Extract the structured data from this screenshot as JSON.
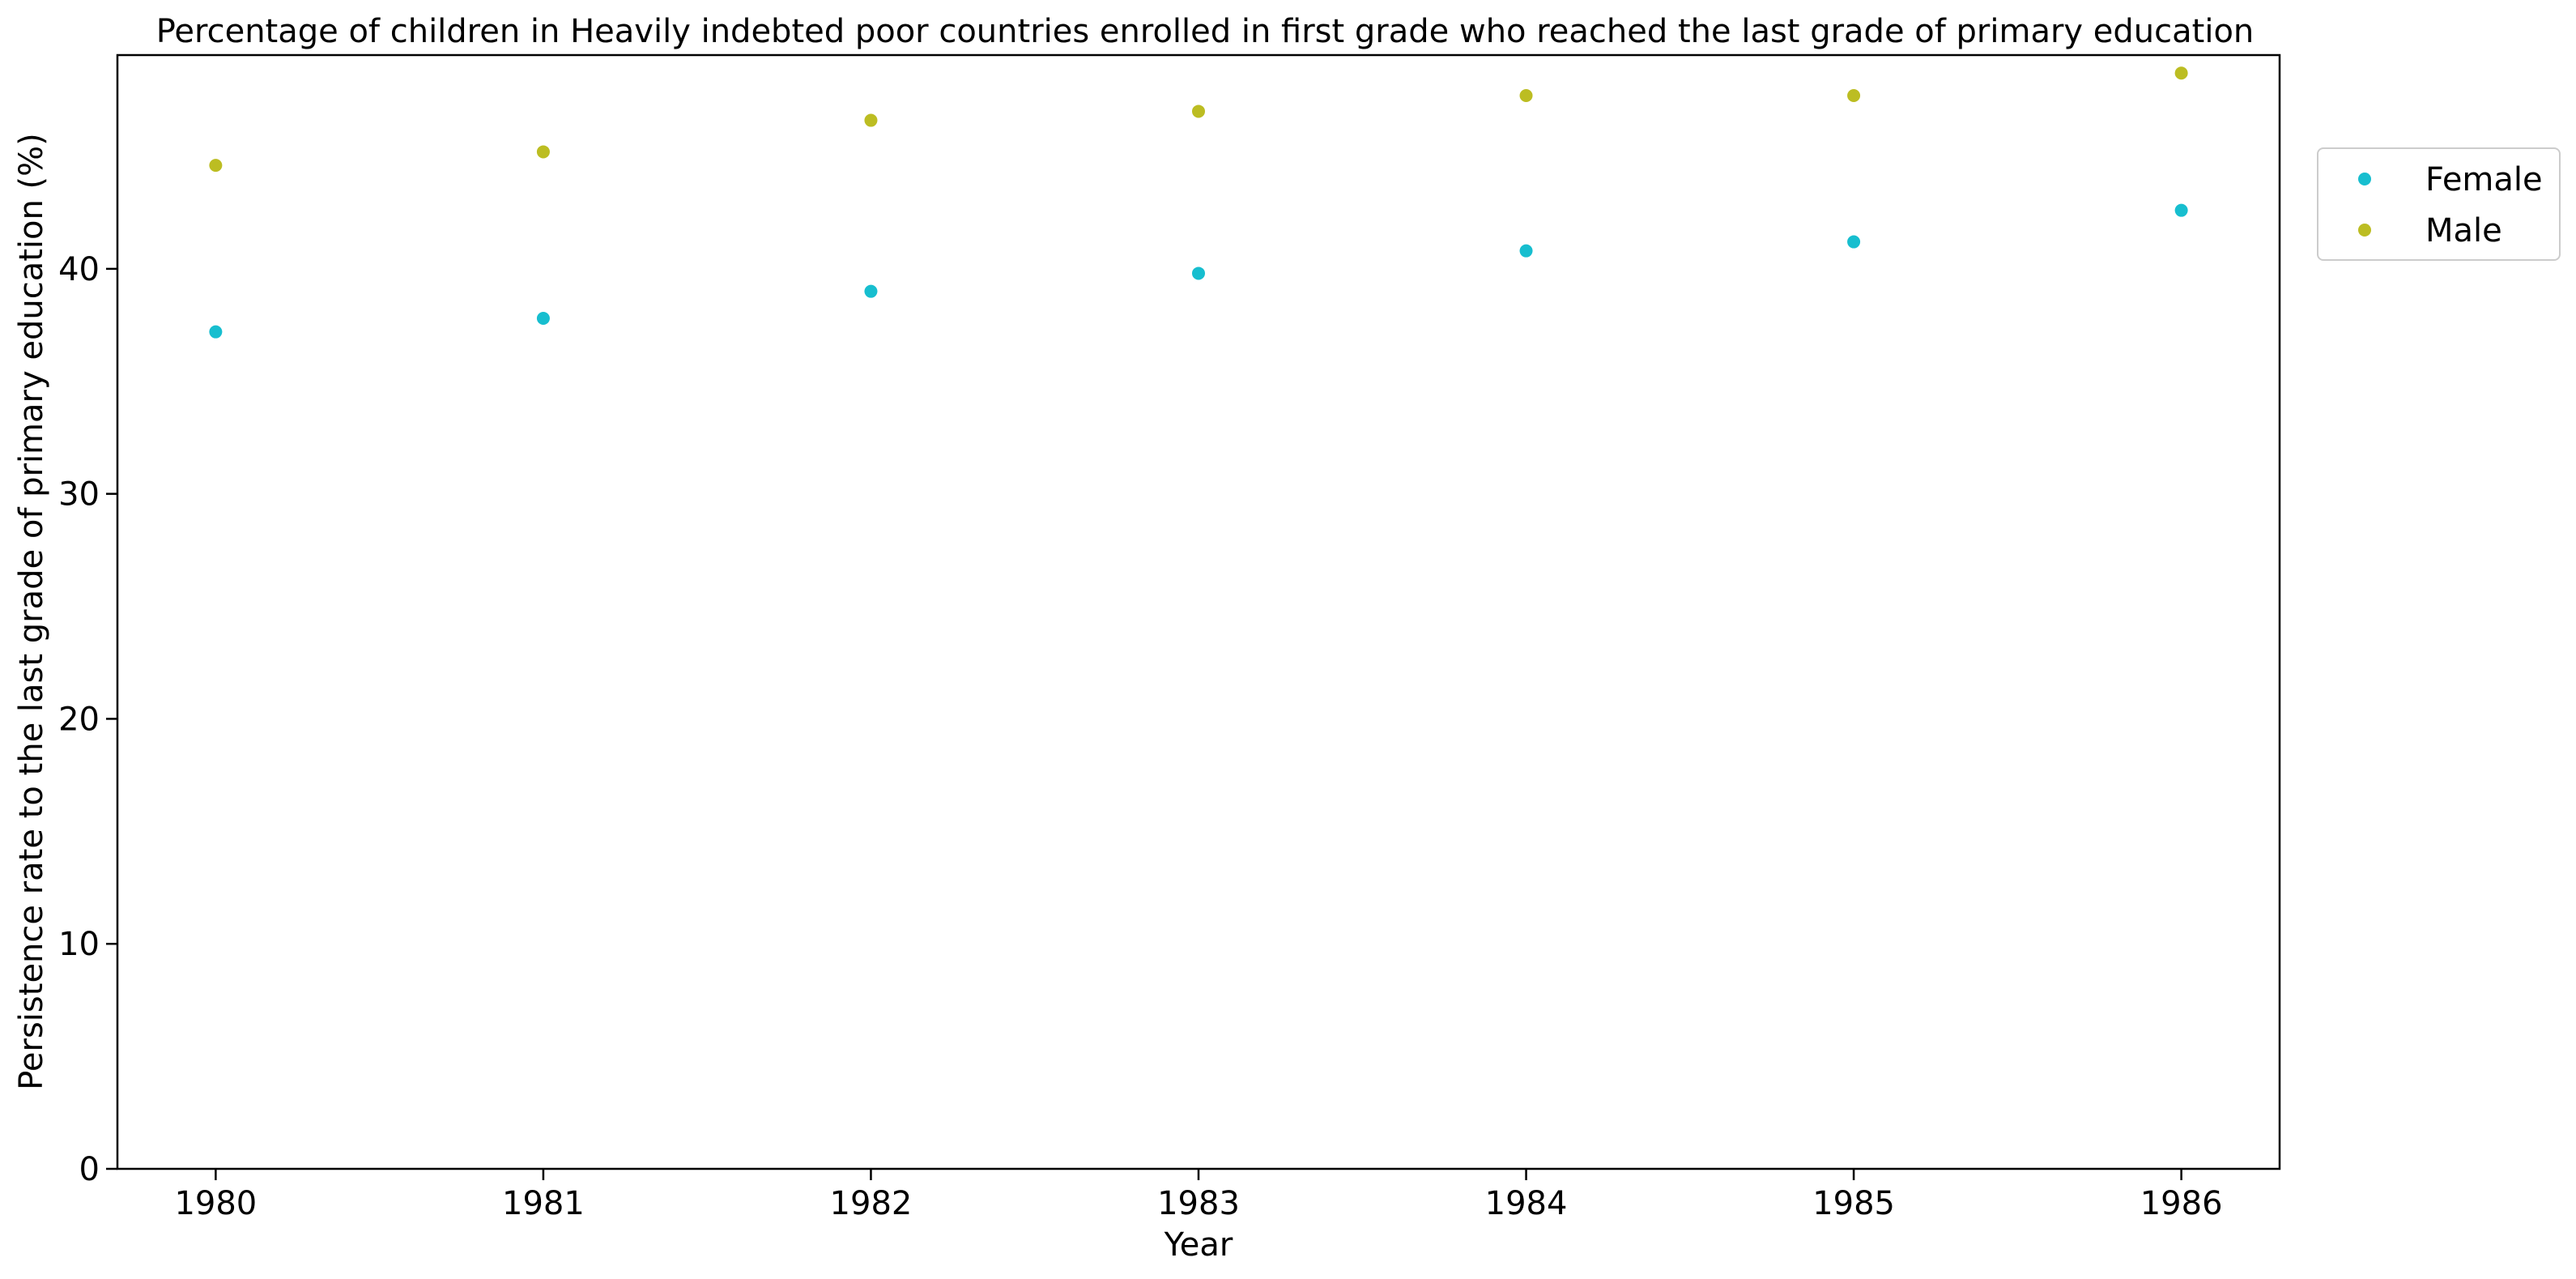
{
  "chart_data": {
    "type": "scatter",
    "title": "Percentage of children in Heavily indebted poor countries enrolled in first grade who reached the last grade of primary education",
    "xlabel": "Year",
    "ylabel": "Persistence rate to the last grade of primary education (%)",
    "x": [
      1980,
      1981,
      1982,
      1983,
      1984,
      1985,
      1986
    ],
    "x_tick_labels": [
      "1980",
      "1981",
      "1982",
      "1983",
      "1984",
      "1985",
      "1986"
    ],
    "xlim": [
      1979.7,
      1986.3
    ],
    "ylim": [
      0,
      49.5
    ],
    "y_ticks": [
      0,
      10,
      20,
      30,
      40
    ],
    "y_tick_labels": [
      "0",
      "10",
      "20",
      "30",
      "40"
    ],
    "grid": false,
    "legend_position": "outside top-right",
    "series": [
      {
        "name": "Female",
        "color": "#17becf",
        "values": [
          37.2,
          37.8,
          39.0,
          39.8,
          40.8,
          41.2,
          42.6
        ]
      },
      {
        "name": "Male",
        "color": "#bcbd22",
        "values": [
          44.6,
          45.2,
          46.6,
          47.0,
          47.7,
          47.7,
          48.7
        ]
      }
    ]
  }
}
